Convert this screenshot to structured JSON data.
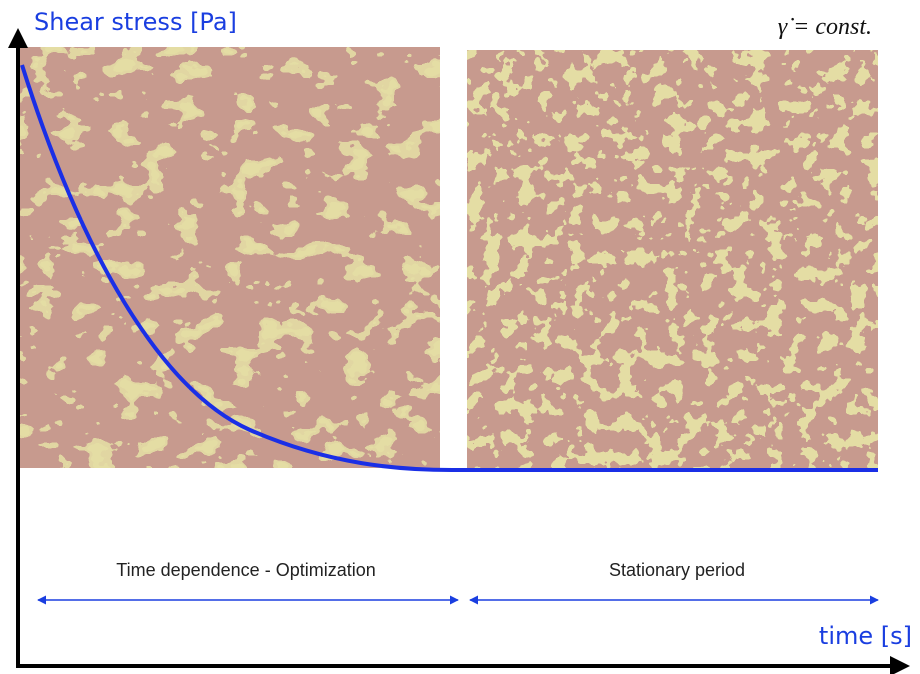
{
  "axes": {
    "y_label": "Shear stress [Pa]",
    "x_label": "time [s]"
  },
  "condition": "γ̇ = const.",
  "phases": [
    {
      "label": "Time dependence - Optimization"
    },
    {
      "label": "Stationary period"
    }
  ]
}
